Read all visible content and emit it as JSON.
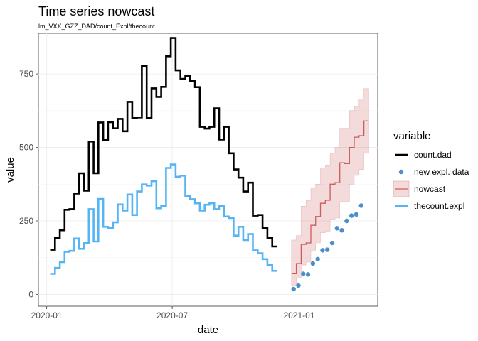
{
  "chart_data": {
    "type": "line",
    "title": "Time series nowcast",
    "subtitle": "lm_VXX_GZZ_DAD/count_Expl/thecount",
    "xlabel": "date",
    "ylabel": "value",
    "x_range": [
      "2019-12-20",
      "2021-04-25"
    ],
    "ylim": [
      -40,
      888
    ],
    "x_ticks": [
      {
        "date": "2020-01-01",
        "label": "2020-01"
      },
      {
        "date": "2020-07-01",
        "label": "2020-07"
      },
      {
        "date": "2021-01-01",
        "label": "2021-01"
      }
    ],
    "y_ticks": [
      0,
      250,
      500,
      750
    ],
    "grid": true,
    "legend": {
      "title": "variable",
      "position": "right",
      "entries": [
        "count.dad",
        "new expl. data",
        "nowcast",
        "thecount.expl"
      ]
    },
    "series": [
      {
        "name": "count.dad",
        "kind": "step",
        "color": "#000000",
        "dates": [
          "2020-01-06",
          "2020-01-13",
          "2020-01-20",
          "2020-01-27",
          "2020-02-03",
          "2020-02-10",
          "2020-02-17",
          "2020-02-24",
          "2020-03-02",
          "2020-03-09",
          "2020-03-16",
          "2020-03-23",
          "2020-03-30",
          "2020-04-06",
          "2020-04-13",
          "2020-04-20",
          "2020-04-27",
          "2020-05-04",
          "2020-05-11",
          "2020-05-18",
          "2020-05-25",
          "2020-06-01",
          "2020-06-08",
          "2020-06-15",
          "2020-06-22",
          "2020-06-29",
          "2020-07-06",
          "2020-07-13",
          "2020-07-20",
          "2020-07-27",
          "2020-08-03",
          "2020-08-10",
          "2020-08-17",
          "2020-08-24",
          "2020-08-31",
          "2020-09-07",
          "2020-09-14",
          "2020-09-21",
          "2020-09-28",
          "2020-10-05",
          "2020-10-12",
          "2020-10-19",
          "2020-10-26",
          "2020-11-02",
          "2020-11-09",
          "2020-11-16",
          "2020-11-23",
          "2020-11-30",
          "2020-12-07",
          "2020-12-14"
        ],
        "values": [
          152,
          192,
          218,
          288,
          290,
          343,
          412,
          353,
          520,
          412,
          585,
          525,
          586,
          565,
          597,
          555,
          655,
          600,
          602,
          776,
          600,
          701,
          672,
          706,
          810,
          872,
          762,
          733,
          743,
          726,
          705,
          570,
          564,
          570,
          633,
          527,
          570,
          480,
          425,
          397,
          350,
          380,
          268,
          270,
          225,
          192,
          163,
          null,
          null,
          null
        ]
      },
      {
        "name": "thecount.expl",
        "kind": "step",
        "color": "#56b4f5",
        "dates": [
          "2020-01-06",
          "2020-01-13",
          "2020-01-20",
          "2020-01-27",
          "2020-02-03",
          "2020-02-10",
          "2020-02-17",
          "2020-02-24",
          "2020-03-02",
          "2020-03-09",
          "2020-03-16",
          "2020-03-23",
          "2020-03-30",
          "2020-04-06",
          "2020-04-13",
          "2020-04-20",
          "2020-04-27",
          "2020-05-04",
          "2020-05-11",
          "2020-05-18",
          "2020-05-25",
          "2020-06-01",
          "2020-06-08",
          "2020-06-15",
          "2020-06-22",
          "2020-06-29",
          "2020-07-06",
          "2020-07-13",
          "2020-07-20",
          "2020-07-27",
          "2020-08-03",
          "2020-08-10",
          "2020-08-17",
          "2020-08-24",
          "2020-08-31",
          "2020-09-07",
          "2020-09-14",
          "2020-09-21",
          "2020-09-28",
          "2020-10-05",
          "2020-10-12",
          "2020-10-19",
          "2020-10-26",
          "2020-11-02",
          "2020-11-09",
          "2020-11-16",
          "2020-11-23",
          "2020-11-30",
          "2020-12-07",
          "2020-12-14"
        ],
        "values": [
          70,
          90,
          110,
          145,
          148,
          190,
          155,
          175,
          290,
          180,
          325,
          230,
          225,
          245,
          306,
          285,
          340,
          270,
          350,
          374,
          370,
          385,
          293,
          300,
          430,
          442,
          400,
          404,
          335,
          324,
          310,
          285,
          305,
          310,
          290,
          300,
          265,
          260,
          200,
          230,
          185,
          205,
          150,
          140,
          120,
          100,
          80,
          null,
          null,
          null
        ]
      },
      {
        "name": "nowcast",
        "kind": "step-band",
        "color": "#cd5c5c",
        "band_color": "#cd5c5c",
        "dates": [
          "2020-12-21",
          "2020-12-28",
          "2021-01-04",
          "2021-01-11",
          "2021-01-18",
          "2021-01-25",
          "2021-02-01",
          "2021-02-08",
          "2021-02-15",
          "2021-02-22",
          "2021-03-01",
          "2021-03-08",
          "2021-03-15",
          "2021-03-22",
          "2021-03-29",
          "2021-04-05"
        ],
        "values": [
          72,
          105,
          170,
          175,
          235,
          265,
          310,
          320,
          375,
          380,
          448,
          445,
          500,
          535,
          540,
          590
        ],
        "lower": [
          30,
          55,
          100,
          110,
          150,
          175,
          210,
          215,
          255,
          260,
          315,
          315,
          375,
          405,
          425,
          480
        ],
        "upper": [
          185,
          200,
          300,
          320,
          360,
          375,
          430,
          440,
          480,
          500,
          565,
          565,
          625,
          640,
          665,
          700
        ]
      },
      {
        "name": "new expl. data",
        "kind": "points",
        "color": "#4a8ecb",
        "dates": [
          "2020-12-24",
          "2020-12-31",
          "2021-01-07",
          "2021-01-14",
          "2021-01-21",
          "2021-01-28",
          "2021-02-04",
          "2021-02-11",
          "2021-02-18",
          "2021-02-25",
          "2021-03-04",
          "2021-03-11",
          "2021-03-18",
          "2021-03-25",
          "2021-04-01",
          "2021-04-08"
        ],
        "values": [
          18,
          30,
          70,
          68,
          105,
          120,
          150,
          152,
          175,
          225,
          218,
          250,
          268,
          272,
          302,
          null
        ]
      }
    ]
  }
}
